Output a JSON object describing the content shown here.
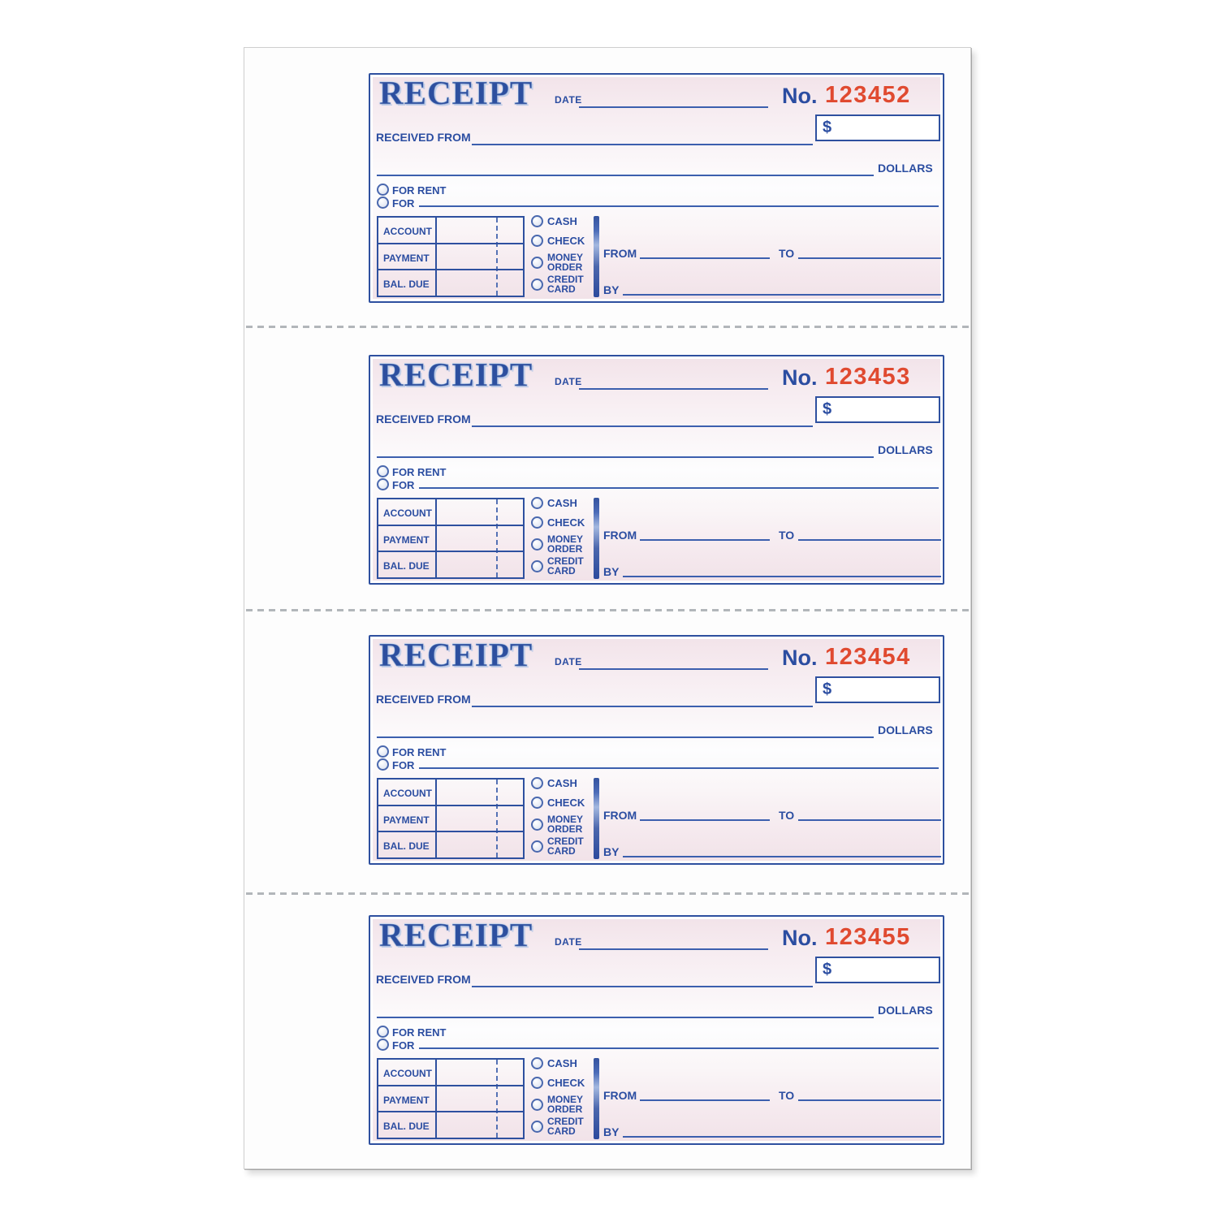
{
  "document": {
    "description": "Page of a receipt book with four identical blank receipt forms separated by perforation lines",
    "colors": {
      "label_blue": "#2b4da1",
      "line_blue": "#3c5fae",
      "border_blue": "#2e509f",
      "logo_blue": "#2d4f9f",
      "number_red": "#e04a30",
      "tint_pink": "#f2e3e9",
      "paper": "#fdfdfd"
    }
  },
  "labels": {
    "title": "RECEIPT",
    "date": "DATE",
    "number_prefix": "No.",
    "received_from": "RECEIVED FROM",
    "dollars": "DOLLARS",
    "for_rent": "FOR RENT",
    "for": "FOR",
    "account": "ACCOUNT",
    "payment": "PAYMENT",
    "balance_due": "BAL. DUE",
    "cash": "CASH",
    "check": "CHECK",
    "money_order_line1": "MONEY",
    "money_order_line2": "ORDER",
    "credit_card_line1": "CREDIT",
    "credit_card_line2": "CARD",
    "from": "FROM",
    "to": "TO",
    "by": "BY",
    "currency_symbol": "$"
  },
  "receipts": [
    {
      "number": "123452"
    },
    {
      "number": "123453"
    },
    {
      "number": "123454"
    },
    {
      "number": "123455"
    }
  ]
}
